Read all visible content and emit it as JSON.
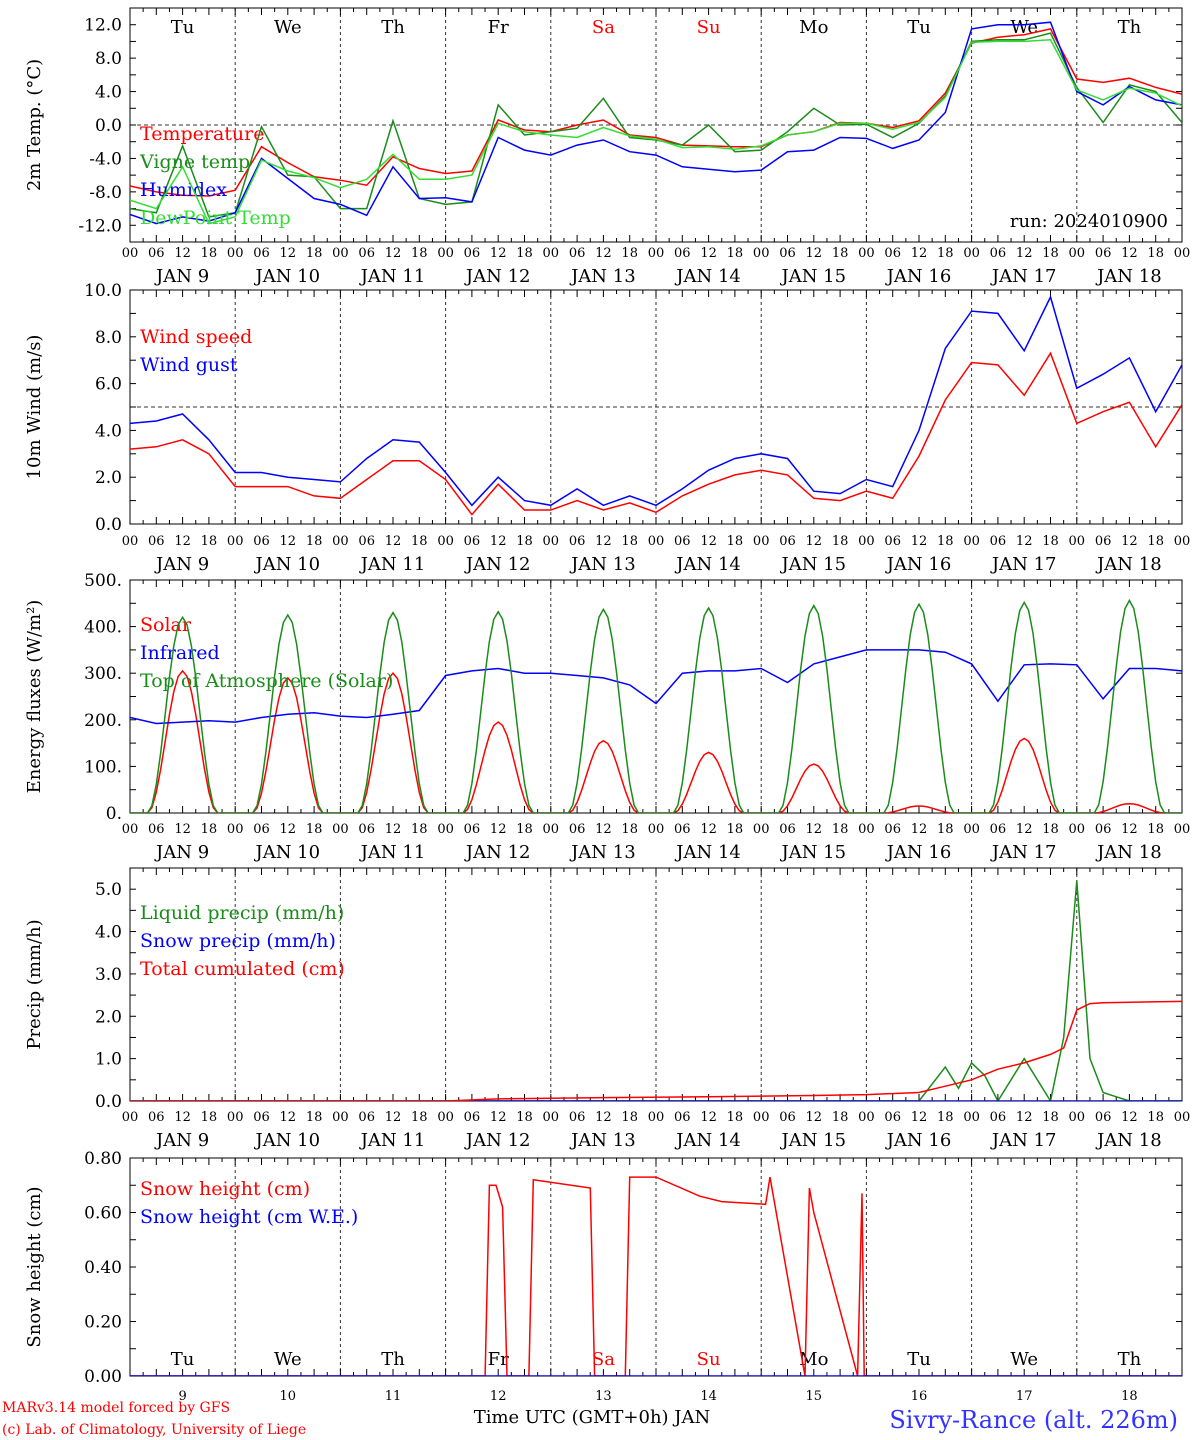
{
  "footer": {
    "credit_line1": "MARv3.14 model forced by GFS",
    "credit_line2": "(c) Lab. of Climatology, University of Liege",
    "time_axis_label": "Time UTC (GMT+0h) JAN",
    "station": "Sivry-Rance (alt. 226m)"
  },
  "colors": {
    "red": "#ff0000",
    "darkgreen": "#1a8c1a",
    "blue": "#0000ff",
    "lightgreen": "#33dd33",
    "weekend": "#ff0000",
    "axis": "#000000"
  },
  "day_names": [
    "Tu",
    "We",
    "Th",
    "Fr",
    "Sa",
    "Su",
    "Mo",
    "Tu",
    "We",
    "Th"
  ],
  "weekend_days": [
    "Sa",
    "Su"
  ],
  "day_labels": [
    "JAN  9",
    "JAN 10",
    "JAN 11",
    "JAN 12",
    "JAN 13",
    "JAN 14",
    "JAN 15",
    "JAN 16",
    "JAN 17",
    "JAN 18"
  ],
  "bottom_day_numbers": [
    "9",
    "10",
    "11",
    "12",
    "13",
    "14",
    "15",
    "16",
    "17",
    "18"
  ],
  "hour_ticks": [
    "00",
    "06",
    "12",
    "18"
  ],
  "chart_data": [
    {
      "type": "line",
      "ylabel": "2m Temp. (°C)",
      "ylim": [
        -14,
        14
      ],
      "yticks": [
        "-12.0",
        "-8.0",
        "-4.0",
        "0.0",
        "4.0",
        "8.0",
        "12.0"
      ],
      "ytick_values": [
        -12,
        -8,
        -4,
        0,
        4,
        8,
        12
      ],
      "ref_line": 0,
      "annotation": "run: 2024010900",
      "x_unit": "hours since JAN 9 00 UTC",
      "series": [
        {
          "name": "Temperature",
          "color": "red",
          "x": [
            0,
            6,
            12,
            18,
            24,
            30,
            36,
            42,
            48,
            54,
            60,
            66,
            72,
            78,
            84,
            90,
            96,
            102,
            108,
            114,
            120,
            126,
            132,
            138,
            144,
            150,
            156,
            162,
            168,
            174,
            180,
            186,
            192,
            198,
            204,
            210,
            216,
            222,
            228,
            234,
            240
          ],
          "values": [
            -7.3,
            -8,
            -8.4,
            -8.5,
            -7.8,
            -2.6,
            -4.5,
            -6.2,
            -6.6,
            -7.2,
            -3.8,
            -5.2,
            -5.8,
            -5.5,
            0.6,
            -0.6,
            -0.8,
            0,
            0.6,
            -1.2,
            -1.5,
            -2.4,
            -2.5,
            -2.6,
            -2.6,
            -1.2,
            -0.8,
            0.3,
            0.2,
            -0.3,
            0.5,
            3.8,
            9.8,
            10.5,
            10.8,
            11.5,
            5.5,
            5.1,
            5.6,
            4.5,
            3.7
          ]
        },
        {
          "name": "Vigne temp",
          "color": "darkgreen",
          "x": [
            0,
            6,
            12,
            18,
            24,
            30,
            36,
            42,
            48,
            54,
            60,
            66,
            72,
            78,
            84,
            90,
            96,
            102,
            108,
            114,
            120,
            126,
            132,
            138,
            144,
            150,
            156,
            162,
            168,
            174,
            180,
            186,
            192,
            198,
            204,
            210,
            216,
            222,
            228,
            234,
            240
          ],
          "values": [
            -10,
            -10.5,
            -2.5,
            -11,
            -10.5,
            -0.2,
            -6,
            -6.2,
            -10,
            -10,
            0.5,
            -8.8,
            -9.5,
            -9.2,
            2.4,
            -1.2,
            -0.8,
            -0.4,
            3.2,
            -1.5,
            -1.8,
            -2.4,
            0,
            -3.2,
            -3,
            -0.8,
            2,
            0,
            0.1,
            -1.5,
            0.2,
            3.5,
            10,
            10.2,
            10.2,
            11,
            4.5,
            0.3,
            4.8,
            4,
            0.3
          ]
        },
        {
          "name": "Humidex",
          "color": "blue",
          "x": [
            0,
            6,
            12,
            18,
            24,
            30,
            36,
            42,
            48,
            54,
            60,
            66,
            72,
            78,
            84,
            90,
            96,
            102,
            108,
            114,
            120,
            126,
            132,
            138,
            144,
            150,
            156,
            162,
            168,
            174,
            180,
            186,
            192,
            198,
            204,
            210,
            216,
            222,
            228,
            234,
            240
          ],
          "values": [
            -10.7,
            -11.8,
            -11,
            -11.5,
            -10.5,
            -4,
            -6.4,
            -8.8,
            -9.5,
            -10.8,
            -5,
            -8.8,
            -8.7,
            -9.2,
            -1.5,
            -3,
            -3.6,
            -2.4,
            -1.8,
            -3.2,
            -3.6,
            -5,
            -5.3,
            -5.6,
            -5.4,
            -3.2,
            -3,
            -1.5,
            -1.6,
            -2.8,
            -1.8,
            1.5,
            11.5,
            12,
            12,
            12.3,
            4,
            2.4,
            4.6,
            3,
            2.4
          ]
        },
        {
          "name": "DewPoint Temp",
          "color": "lightgreen",
          "x": [
            0,
            6,
            12,
            18,
            24,
            30,
            36,
            42,
            48,
            54,
            60,
            66,
            72,
            78,
            84,
            90,
            96,
            102,
            108,
            114,
            120,
            126,
            132,
            138,
            144,
            150,
            156,
            162,
            168,
            174,
            180,
            186,
            192,
            198,
            204,
            210,
            216,
            222,
            228,
            234,
            240
          ],
          "values": [
            -9,
            -10,
            -5,
            -11.8,
            -11,
            -4.2,
            -5.5,
            -6.3,
            -7.5,
            -6.5,
            -3.5,
            -6.5,
            -6.5,
            -6,
            0.2,
            -0.8,
            -1.2,
            -1.5,
            -0.3,
            -1.3,
            -1.7,
            -2.7,
            -2.6,
            -2.9,
            -2.5,
            -1.2,
            -0.8,
            0.2,
            0.2,
            -0.5,
            0.3,
            3.3,
            9.9,
            10,
            10,
            10.2,
            4.2,
            3,
            4.4,
            3.8,
            2.3
          ]
        }
      ]
    },
    {
      "type": "line",
      "ylabel": "10m Wind (m/s)",
      "ylim": [
        0,
        10
      ],
      "yticks": [
        "0.0",
        "2.0",
        "4.0",
        "6.0",
        "8.0",
        "10.0"
      ],
      "ytick_values": [
        0,
        2,
        4,
        6,
        8,
        10
      ],
      "ref_line": 5,
      "x_unit": "hours since JAN 9 00 UTC",
      "series": [
        {
          "name": "Wind speed",
          "color": "red",
          "x": [
            0,
            6,
            12,
            18,
            24,
            30,
            36,
            42,
            48,
            54,
            60,
            66,
            72,
            78,
            84,
            90,
            96,
            102,
            108,
            114,
            120,
            126,
            132,
            138,
            144,
            150,
            156,
            162,
            168,
            174,
            180,
            186,
            192,
            198,
            204,
            210,
            216,
            222,
            228,
            234,
            240
          ],
          "values": [
            3.2,
            3.3,
            3.6,
            3,
            1.6,
            1.6,
            1.6,
            1.2,
            1.1,
            1.9,
            2.7,
            2.7,
            1.9,
            0.4,
            1.7,
            0.6,
            0.6,
            1,
            0.6,
            0.9,
            0.5,
            1.2,
            1.7,
            2.1,
            2.3,
            2.1,
            1.1,
            1,
            1.4,
            1.1,
            2.9,
            5.3,
            6.9,
            6.8,
            5.5,
            7.3,
            4.3,
            4.8,
            5.2,
            3.3,
            5.1
          ]
        },
        {
          "name": "Wind gust",
          "color": "blue",
          "x": [
            0,
            6,
            12,
            18,
            24,
            30,
            36,
            42,
            48,
            54,
            60,
            66,
            72,
            78,
            84,
            90,
            96,
            102,
            108,
            114,
            120,
            126,
            132,
            138,
            144,
            150,
            156,
            162,
            168,
            174,
            180,
            186,
            192,
            198,
            204,
            210,
            216,
            222,
            228,
            234,
            240
          ],
          "values": [
            4.3,
            4.4,
            4.7,
            3.6,
            2.2,
            2.2,
            2,
            1.9,
            1.8,
            2.8,
            3.6,
            3.5,
            2.2,
            0.8,
            2,
            1,
            0.8,
            1.5,
            0.8,
            1.2,
            0.8,
            1.5,
            2.3,
            2.8,
            3,
            2.8,
            1.4,
            1.3,
            1.9,
            1.6,
            4,
            7.5,
            9.1,
            9,
            7.4,
            9.7,
            5.8,
            6.4,
            7.1,
            4.8,
            6.8
          ]
        }
      ]
    },
    {
      "type": "line",
      "ylabel": "Energy fluxes (W/m²)",
      "ylim": [
        0,
        500
      ],
      "yticks": [
        "0.",
        "100.",
        "200.",
        "300.",
        "400.",
        "500."
      ],
      "ytick_values": [
        0,
        100,
        200,
        300,
        400,
        500
      ],
      "x_unit": "hours since JAN 9 00 UTC",
      "series": [
        {
          "name": "Solar",
          "color": "red",
          "peak_hour": 12,
          "width_hours": 8,
          "daily_peaks": [
            305,
            290,
            300,
            195,
            155,
            130,
            105,
            15,
            160,
            20
          ]
        },
        {
          "name": "Infrared",
          "color": "blue",
          "x": [
            0,
            6,
            12,
            18,
            24,
            30,
            36,
            42,
            48,
            54,
            60,
            66,
            72,
            78,
            84,
            90,
            96,
            102,
            108,
            114,
            120,
            126,
            132,
            138,
            144,
            150,
            156,
            162,
            168,
            174,
            180,
            186,
            192,
            198,
            204,
            210,
            216,
            222,
            228,
            234,
            240
          ],
          "values": [
            205,
            192,
            195,
            198,
            195,
            205,
            212,
            215,
            208,
            205,
            212,
            220,
            295,
            305,
            310,
            300,
            300,
            295,
            290,
            275,
            235,
            300,
            305,
            305,
            310,
            280,
            320,
            335,
            350,
            350,
            350,
            345,
            320,
            240,
            318,
            320,
            318,
            245,
            310,
            310,
            305
          ]
        },
        {
          "name": "Top of Atmosphere (Solar)",
          "color": "darkgreen",
          "peak_hour": 12,
          "width_hours": 8,
          "daily_peaks": [
            420,
            425,
            430,
            432,
            437,
            440,
            445,
            448,
            452,
            456
          ]
        }
      ]
    },
    {
      "type": "line",
      "ylabel": "Precip (mm/h)",
      "ylim": [
        0,
        5.5
      ],
      "yticks": [
        "0.0",
        "1.0",
        "2.0",
        "3.0",
        "4.0",
        "5.0"
      ],
      "ytick_values": [
        0,
        1,
        2,
        3,
        4,
        5
      ],
      "x_unit": "hours since JAN 9 00 UTC",
      "series": [
        {
          "name": "Liquid precip (mm/h)",
          "color": "darkgreen",
          "x": [
            0,
            72,
            180,
            186,
            189,
            192,
            195,
            198,
            204,
            210,
            213,
            216,
            219,
            222,
            225,
            228,
            231,
            234,
            237,
            240
          ],
          "values": [
            0,
            0,
            0,
            0.8,
            0.3,
            0.9,
            0.6,
            0,
            1,
            0,
            1.5,
            5.2,
            1,
            0.2,
            0.1,
            0,
            0,
            0,
            0,
            0
          ]
        },
        {
          "name": "Snow precip (mm/h)",
          "color": "blue",
          "x": [
            0,
            72,
            240
          ],
          "values": [
            0,
            0,
            0
          ]
        },
        {
          "name": "Total cumulated (cm)",
          "color": "red",
          "x": [
            0,
            72,
            84,
            108,
            132,
            156,
            168,
            180,
            186,
            192,
            198,
            204,
            210,
            213,
            216,
            219,
            222,
            240
          ],
          "values": [
            0,
            0,
            0.05,
            0.08,
            0.1,
            0.13,
            0.15,
            0.2,
            0.35,
            0.5,
            0.75,
            0.9,
            1.1,
            1.25,
            2.15,
            2.3,
            2.32,
            2.35
          ]
        }
      ]
    },
    {
      "type": "line",
      "ylabel": "Snow height (cm)",
      "ylim": [
        0,
        0.8
      ],
      "yticks": [
        "0.00",
        "0.20",
        "0.40",
        "0.60",
        "0.80"
      ],
      "ytick_values": [
        0,
        0.2,
        0.4,
        0.6,
        0.8
      ],
      "x_unit": "hours since JAN 9 00 UTC",
      "series": [
        {
          "name": "Snow height (cm)",
          "color": "red",
          "x": [
            0,
            81,
            82,
            83.5,
            85,
            86,
            91,
            92,
            105,
            106,
            113,
            114,
            120,
            130,
            135,
            145,
            146,
            154,
            155,
            156,
            166,
            167,
            167.5,
            177,
            178,
            179,
            240
          ],
          "values": [
            0,
            0,
            0.7,
            0.7,
            0.62,
            0,
            0,
            0.72,
            0.69,
            0,
            0,
            0.73,
            0.73,
            0.66,
            0.64,
            0.63,
            0.73,
            0,
            0.69,
            0.6,
            0,
            0.67,
            0,
            0,
            0,
            0,
            0
          ]
        },
        {
          "name": "Snow height (cm W.E.)",
          "color": "blue",
          "x": [
            0,
            240
          ],
          "values": [
            0,
            0
          ]
        }
      ]
    }
  ]
}
